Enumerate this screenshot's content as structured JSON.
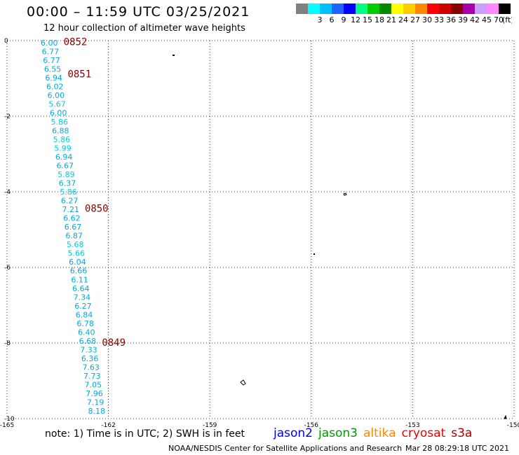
{
  "header": {
    "title": "00:00 – 11:59 UTC 03/25/2021",
    "subtitle": "12 hour collection of altimeter wave heights"
  },
  "legend": {
    "unit": "(ft)",
    "bins": [
      {
        "label": "",
        "color": "#808080"
      },
      {
        "label": "3",
        "color": "#00ffff"
      },
      {
        "label": "6",
        "color": "#00bfff"
      },
      {
        "label": "9",
        "color": "#1e64ff"
      },
      {
        "label": "12",
        "color": "#0000ff"
      },
      {
        "label": "15",
        "color": "#00ff80"
      },
      {
        "label": "18",
        "color": "#00cc00"
      },
      {
        "label": "21",
        "color": "#008800"
      },
      {
        "label": "24",
        "color": "#ffff00"
      },
      {
        "label": "27",
        "color": "#ffcc00"
      },
      {
        "label": "30",
        "color": "#ff8800"
      },
      {
        "label": "33",
        "color": "#ff0000"
      },
      {
        "label": "36",
        "color": "#cc0000"
      },
      {
        "label": "39",
        "color": "#880000"
      },
      {
        "label": "42",
        "color": "#aa00aa"
      },
      {
        "label": "45",
        "color": "#c8a0ff"
      },
      {
        "label": "70",
        "color": "#ff88ff"
      },
      {
        "label": "",
        "color": "#000000"
      }
    ]
  },
  "map": {
    "x_ticks": [
      "-165",
      "-162",
      "-159",
      "-156",
      "-153",
      "-150"
    ],
    "y_ticks": [
      "0",
      "-2",
      "-4",
      "-6",
      "-8",
      "-10"
    ],
    "pass_times": [
      {
        "label": "0852",
        "lat": -0.05
      },
      {
        "label": "0851",
        "lat": -0.9
      },
      {
        "label": "0850",
        "lat": -4.45
      },
      {
        "label": "0849",
        "lat": -8.0
      }
    ],
    "track": {
      "color": "#00aadd",
      "start": {
        "lon": -163.75,
        "lat": 0.0
      },
      "end": {
        "lon": -162.35,
        "lat": -9.8
      },
      "values": [
        "6.00",
        "6.77",
        "6.77",
        "6.55",
        "6.94",
        "6.02",
        "6.00",
        "5.67",
        "6.00",
        "5.86",
        "6.88",
        "5.86",
        "5.99",
        "6.94",
        "6.67",
        "5.89",
        "6.37",
        "5.86",
        "6.27",
        "7.21",
        "6.62",
        "6.67",
        "6.87",
        "5.68",
        "5.66",
        "6.04",
        "6.66",
        "6.11",
        "6.64",
        "7.34",
        "6.27",
        "6.84",
        "6.78",
        "6.40",
        "6.68",
        "7.33",
        "6.36",
        "7.63",
        "7.73",
        "7.05",
        "7.96",
        "7.19",
        "8.18"
      ]
    }
  },
  "note": "note:  1) Time is in UTC; 2) SWH is in feet",
  "satellites": [
    {
      "name": "jason2",
      "color": "#0000ee"
    },
    {
      "name": "jason3",
      "color": "#009900"
    },
    {
      "name": "altika",
      "color": "#ff8800"
    },
    {
      "name": "cryosat",
      "color": "#ee0000"
    },
    {
      "name": "s3a",
      "color": "#aa0000"
    }
  ],
  "footer": {
    "credit": "NOAA/NESDIS Center for Satellite Applications and Research",
    "timestamp": "Mar 28 08:29:18 UTC 2021"
  }
}
